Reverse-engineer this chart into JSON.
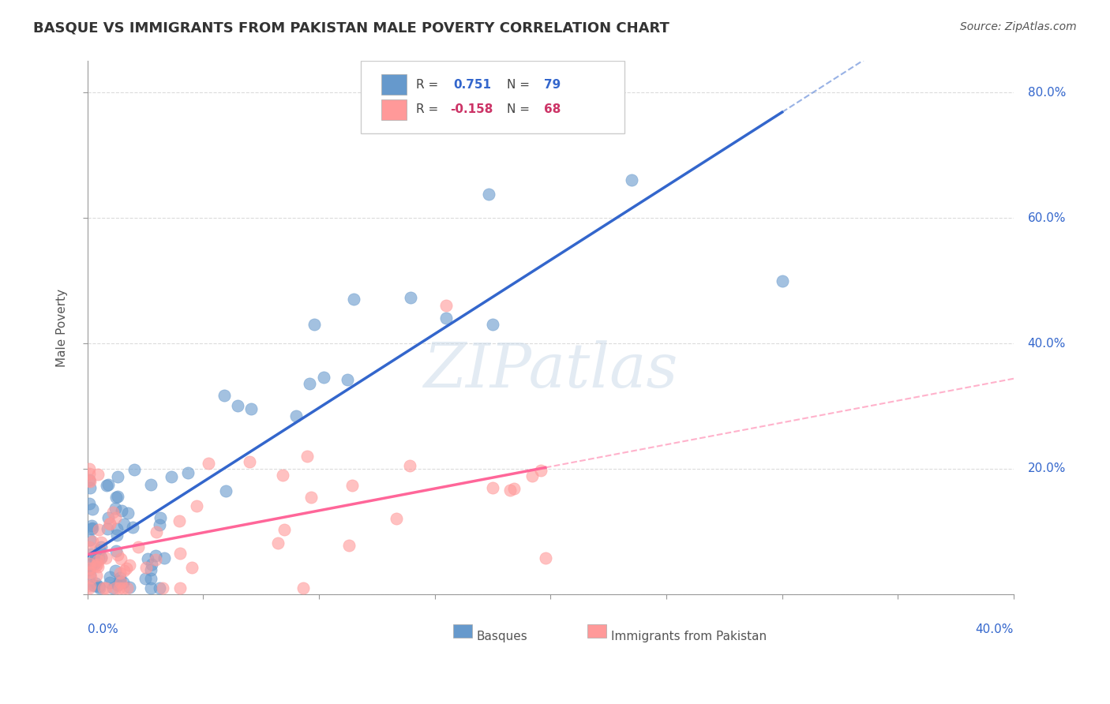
{
  "title": "BASQUE VS IMMIGRANTS FROM PAKISTAN MALE POVERTY CORRELATION CHART",
  "source": "Source: ZipAtlas.com",
  "ylabel": "Male Poverty",
  "xlim": [
    0.0,
    0.4
  ],
  "ylim": [
    0.0,
    0.85
  ],
  "blue_color": "#6699CC",
  "pink_color": "#FF9999",
  "blue_line_color": "#3366CC",
  "pink_line_color": "#FF6699",
  "watermark_color": "#C8D8E8"
}
